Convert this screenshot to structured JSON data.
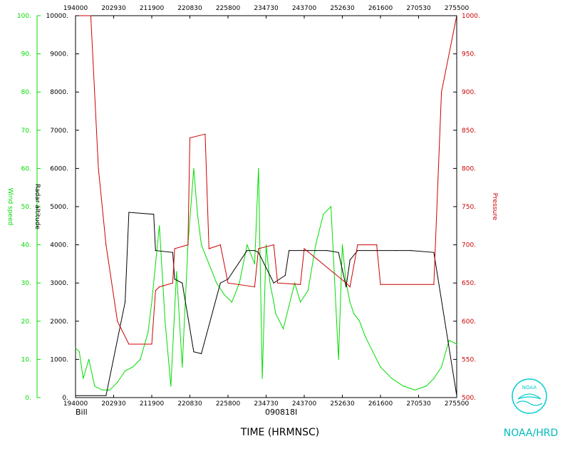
{
  "chart_data": {
    "type": "line",
    "title": "",
    "storm_name": "Bill",
    "flight_id": "090818I",
    "xlabel": "TIME (HRMNSC)",
    "xticks": [
      "194000",
      "202930",
      "211900",
      "220830",
      "225800",
      "234730",
      "243700",
      "252630",
      "261600",
      "270530",
      "275500"
    ],
    "xrange": [
      "194000",
      "275500"
    ],
    "y_axes": [
      {
        "name": "Wind speed",
        "color": "#00dd00",
        "ylim": [
          0,
          100
        ],
        "ticks": [
          "0.",
          "10.",
          "20.",
          "30.",
          "40.",
          "50.",
          "60.",
          "70.",
          "80.",
          "90.",
          "100."
        ]
      },
      {
        "name": "Radar altitude",
        "color": "#000000",
        "ylim": [
          0,
          10000
        ],
        "ticks": [
          "0.",
          "1000.",
          "2000.",
          "3000.",
          "4000.",
          "5000.",
          "6000.",
          "7000.",
          "8000.",
          "9000.",
          "10000."
        ]
      },
      {
        "name": "Pressure",
        "color": "#cc0000",
        "ylim": [
          500,
          1000
        ],
        "ticks": [
          "500.",
          "550.",
          "600.",
          "650.",
          "700.",
          "750.",
          "800.",
          "850.",
          "900.",
          "950.",
          "1000."
        ]
      }
    ],
    "series": [
      {
        "name": "Wind speed",
        "color": "#00dd00",
        "x_fraction": [
          0,
          0.01,
          0.02,
          0.035,
          0.05,
          0.07,
          0.09,
          0.11,
          0.13,
          0.15,
          0.17,
          0.19,
          0.2,
          0.21,
          0.22,
          0.235,
          0.25,
          0.265,
          0.28,
          0.295,
          0.31,
          0.32,
          0.33,
          0.35,
          0.37,
          0.39,
          0.41,
          0.43,
          0.45,
          0.47,
          0.48,
          0.49,
          0.5,
          0.51,
          0.52,
          0.525,
          0.535,
          0.545,
          0.56,
          0.575,
          0.59,
          0.61,
          0.63,
          0.65,
          0.67,
          0.69,
          0.7,
          0.71,
          0.72,
          0.73,
          0.745,
          0.76,
          0.78,
          0.8,
          0.83,
          0.86,
          0.89,
          0.92,
          0.94,
          0.96,
          0.98,
          1.0
        ],
        "values": [
          13,
          12,
          5,
          10,
          3,
          2,
          2,
          4,
          7,
          8,
          10,
          17,
          25,
          35,
          45,
          20,
          3,
          33,
          8,
          40,
          60,
          48,
          40,
          35,
          30,
          27,
          25,
          30,
          40,
          35,
          60,
          5,
          40,
          30,
          25,
          22,
          20,
          18,
          24,
          30,
          25,
          28,
          40,
          48,
          50,
          10,
          40,
          30,
          25,
          22,
          20,
          16,
          12,
          8,
          5,
          3,
          2,
          3,
          5,
          8,
          15,
          14
        ]
      },
      {
        "name": "Radar altitude",
        "color": "#000000",
        "x_fraction": [
          0,
          0.08,
          0.13,
          0.14,
          0.205,
          0.21,
          0.255,
          0.26,
          0.28,
          0.31,
          0.33,
          0.38,
          0.4,
          0.45,
          0.47,
          0.48,
          0.52,
          0.55,
          0.56,
          0.61,
          0.63,
          0.66,
          0.69,
          0.71,
          0.72,
          0.74,
          0.79,
          0.84,
          0.88,
          0.94,
          1.0
        ],
        "values": [
          50,
          50,
          2500,
          4850,
          4800,
          3850,
          3800,
          3100,
          3000,
          1200,
          1150,
          3000,
          3100,
          3850,
          3850,
          3800,
          3000,
          3200,
          3850,
          3850,
          3850,
          3850,
          3800,
          2900,
          3600,
          3850,
          3850,
          3850,
          3850,
          3800,
          50
        ]
      },
      {
        "name": "Pressure",
        "color": "#cc0000",
        "x_fraction": [
          0,
          0.04,
          0.06,
          0.08,
          0.11,
          0.14,
          0.2,
          0.21,
          0.22,
          0.255,
          0.26,
          0.295,
          0.3,
          0.34,
          0.35,
          0.38,
          0.4,
          0.47,
          0.48,
          0.52,
          0.53,
          0.59,
          0.6,
          0.71,
          0.72,
          0.74,
          0.79,
          0.8,
          0.94,
          0.96,
          1.0
        ],
        "values": [
          1000,
          1000,
          800,
          700,
          600,
          570,
          570,
          640,
          645,
          650,
          695,
          700,
          840,
          845,
          695,
          700,
          650,
          645,
          695,
          700,
          650,
          648,
          695,
          650,
          645,
          700,
          700,
          648,
          648,
          900,
          1000
        ]
      }
    ],
    "grid": false,
    "legend": "none"
  },
  "branding": {
    "logo_text": "NOAA",
    "org_label": "NOAA/HRD"
  }
}
